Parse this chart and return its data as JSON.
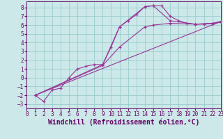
{
  "xlabel": "Windchill (Refroidissement éolien,°C)",
  "bg_color": "#cce8e8",
  "grid_color": "#99cccc",
  "line_color": "#993399",
  "xlim": [
    0,
    23
  ],
  "ylim": [
    -3.5,
    8.7
  ],
  "xticks": [
    0,
    1,
    2,
    3,
    4,
    5,
    6,
    7,
    8,
    9,
    10,
    11,
    12,
    13,
    14,
    15,
    16,
    17,
    18,
    19,
    20,
    21,
    22,
    23
  ],
  "yticks": [
    -3,
    -2,
    -1,
    0,
    1,
    2,
    3,
    4,
    5,
    6,
    7,
    8
  ],
  "font_color": "#660066",
  "tick_fontsize": 5.5,
  "label_fontsize": 7.0,
  "series1_x": [
    1,
    2,
    3,
    4,
    5,
    6,
    7,
    8,
    9,
    10,
    11,
    12,
    13,
    14,
    15,
    16,
    17,
    18,
    19,
    20,
    21,
    22,
    23
  ],
  "series1_y": [
    -2.0,
    -2.7,
    -1.4,
    -1.2,
    0.0,
    1.0,
    1.3,
    1.5,
    1.5,
    3.5,
    5.8,
    6.5,
    7.2,
    8.1,
    8.2,
    8.2,
    7.0,
    6.5,
    6.2,
    6.1,
    6.1,
    6.2,
    6.4
  ],
  "series2_x": [
    1,
    9,
    11,
    14,
    15,
    17,
    20,
    22,
    23
  ],
  "series2_y": [
    -2.0,
    1.5,
    5.8,
    8.1,
    8.2,
    6.5,
    6.1,
    6.2,
    6.4
  ],
  "series3_x": [
    1,
    9,
    11,
    14,
    15,
    17,
    20,
    22,
    23
  ],
  "series3_y": [
    -2.0,
    1.4,
    3.5,
    5.8,
    6.0,
    6.2,
    6.1,
    6.2,
    6.3
  ],
  "series4_x": [
    1,
    23
  ],
  "series4_y": [
    -2.0,
    6.4
  ]
}
